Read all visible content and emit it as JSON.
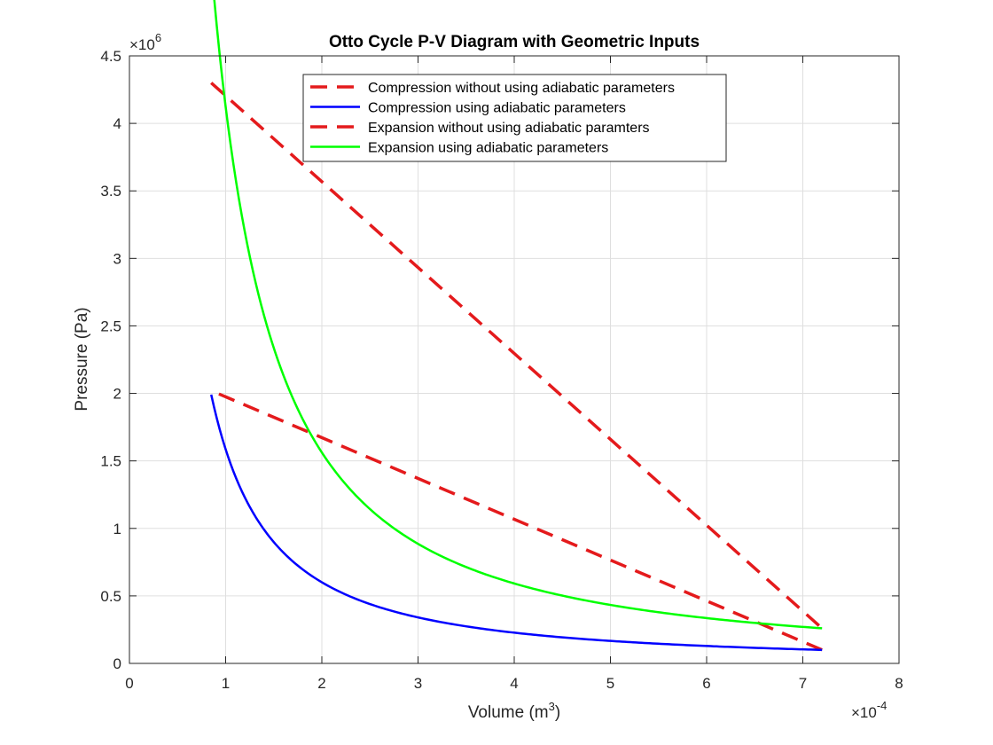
{
  "chart_data": {
    "type": "line",
    "title": "Otto Cycle P-V Diagram with Geometric Inputs",
    "xlabel_prefix": "Volume (m",
    "xlabel_sup": "3",
    "xlabel_suffix": ")",
    "ylabel": "Pressure (Pa)",
    "x_exponent_label": "×10",
    "x_exponent_power": "-4",
    "y_exponent_label": "×10",
    "y_exponent_power": "6",
    "xlim": [
      0,
      8
    ],
    "ylim": [
      0,
      4.5
    ],
    "xticks": [
      0,
      1,
      2,
      3,
      4,
      5,
      6,
      7,
      8
    ],
    "xtick_labels": [
      "0",
      "1",
      "2",
      "3",
      "4",
      "5",
      "6",
      "7",
      "8"
    ],
    "yticks": [
      0,
      0.5,
      1,
      1.5,
      2,
      2.5,
      3,
      3.5,
      4,
      4.5
    ],
    "ytick_labels": [
      "0",
      "0.5",
      "1",
      "1.5",
      "2",
      "2.5",
      "3",
      "3.5",
      "4",
      "4.5"
    ],
    "grid": true,
    "legend_position": "top-center",
    "units_note": "x in units of 1e-4 m^3, y in units of 1e6 Pa",
    "series": [
      {
        "name": "Compression without using adiabatic parameters",
        "color": "#e41a1c",
        "style": "dashed",
        "kind": "line",
        "x": [
          7.2,
          0.85
        ],
        "y": [
          0.1,
          2.02
        ]
      },
      {
        "name": "Compression using adiabatic parameters",
        "color": "#0000ff",
        "style": "solid",
        "kind": "adiabatic",
        "x_range": [
          0.85,
          7.2
        ],
        "p_at_max_v": 0.1,
        "gamma": 1.4
      },
      {
        "name": "Expansion without using adiabatic paramters",
        "color": "#e41a1c",
        "style": "dashed",
        "kind": "line",
        "x": [
          0.85,
          7.2
        ],
        "y": [
          4.3,
          0.26
        ]
      },
      {
        "name": "Expansion using adiabatic parameters",
        "color": "#00ff00",
        "style": "solid",
        "kind": "adiabatic",
        "x_range": [
          0.85,
          7.2
        ],
        "p_at_max_v": 0.26,
        "gamma": 1.4
      }
    ]
  },
  "colors": {
    "axes": "#262626",
    "grid": "#dfdfdf",
    "background": "#ffffff"
  }
}
